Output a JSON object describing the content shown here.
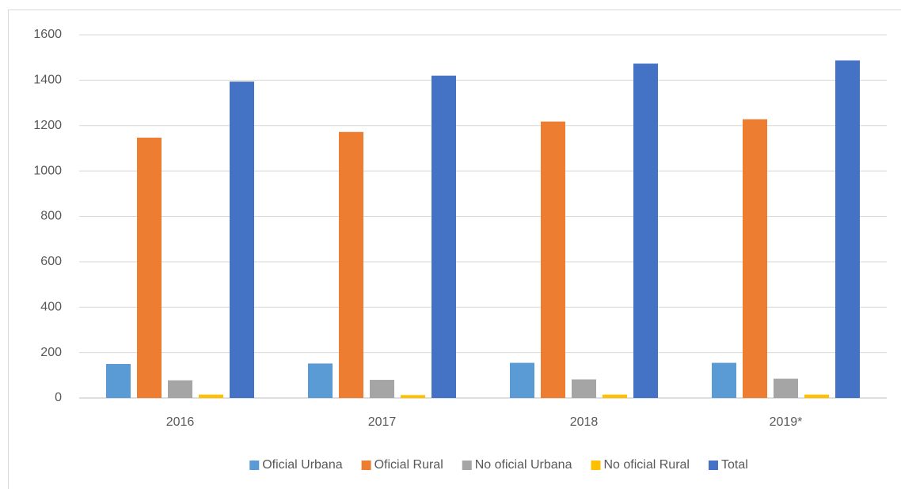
{
  "chart_data": {
    "type": "bar",
    "categories": [
      "2016",
      "2017",
      "2018",
      "2019*"
    ],
    "series": [
      {
        "name": "Oficial Urbana",
        "color": "#5b9bd5",
        "values": [
          150,
          152,
          155,
          155
        ]
      },
      {
        "name": "Oficial Rural",
        "color": "#ed7d31",
        "values": [
          1147,
          1172,
          1218,
          1228
        ]
      },
      {
        "name": "No oficial Urbana",
        "color": "#a5a5a5",
        "values": [
          78,
          80,
          82,
          85
        ]
      },
      {
        "name": "No oficial Rural",
        "color": "#ffc000",
        "values": [
          15,
          13,
          15,
          15
        ]
      },
      {
        "name": "Total",
        "color": "#4472c4",
        "values": [
          1394,
          1420,
          1473,
          1487
        ]
      }
    ],
    "ylim": [
      0,
      1600
    ],
    "yticks": [
      0,
      200,
      400,
      600,
      800,
      1000,
      1200,
      1400,
      1600
    ],
    "grid": true,
    "legend": "bottom"
  }
}
